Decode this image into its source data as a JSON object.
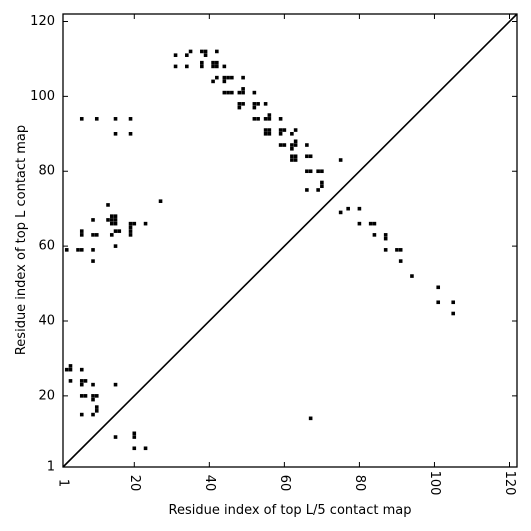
{
  "chart_data": {
    "type": "scatter",
    "xlabel": "Residue index of top L/5 contact map",
    "ylabel": "Residue index of top L contact map",
    "xlim": [
      1,
      122
    ],
    "ylim": [
      1,
      122
    ],
    "xticks": [
      1,
      20,
      40,
      60,
      80,
      100,
      120
    ],
    "yticks": [
      1,
      20,
      40,
      60,
      80,
      100,
      120
    ],
    "x_tick_labels_rotated": true,
    "diagonal_line": true,
    "grid": false,
    "marker": "square",
    "marker_color": "#000000",
    "series": [
      {
        "points": [
          [
            2,
            27
          ],
          [
            3,
            27
          ],
          [
            3,
            28
          ],
          [
            3,
            24
          ],
          [
            6,
            27
          ],
          [
            6,
            24
          ],
          [
            7,
            24
          ],
          [
            6,
            23
          ],
          [
            6,
            20
          ],
          [
            7,
            20
          ],
          [
            9,
            23
          ],
          [
            9,
            20
          ],
          [
            10,
            20
          ],
          [
            9,
            19
          ],
          [
            10,
            17
          ],
          [
            10,
            16
          ],
          [
            6,
            15
          ],
          [
            9,
            15
          ],
          [
            15,
            23
          ],
          [
            15,
            9
          ],
          [
            20,
            10
          ],
          [
            20,
            9
          ],
          [
            20,
            6
          ],
          [
            23,
            6
          ],
          [
            2,
            59
          ],
          [
            5,
            59
          ],
          [
            6,
            59
          ],
          [
            6,
            64
          ],
          [
            6,
            63
          ],
          [
            9,
            63
          ],
          [
            10,
            63
          ],
          [
            9,
            67
          ],
          [
            9,
            59
          ],
          [
            9,
            56
          ],
          [
            13,
            71
          ],
          [
            13,
            67
          ],
          [
            14,
            68
          ],
          [
            15,
            68
          ],
          [
            14,
            67
          ],
          [
            15,
            67
          ],
          [
            14,
            66
          ],
          [
            15,
            66
          ],
          [
            15,
            64
          ],
          [
            16,
            64
          ],
          [
            14,
            63
          ],
          [
            15,
            60
          ],
          [
            19,
            66
          ],
          [
            20,
            66
          ],
          [
            19,
            65
          ],
          [
            19,
            64
          ],
          [
            19,
            63
          ],
          [
            23,
            66
          ],
          [
            27,
            72
          ],
          [
            6,
            94
          ],
          [
            10,
            94
          ],
          [
            15,
            94
          ],
          [
            15,
            90
          ],
          [
            19,
            94
          ],
          [
            19,
            90
          ],
          [
            31,
            111
          ],
          [
            31,
            108
          ],
          [
            34,
            111
          ],
          [
            34,
            108
          ],
          [
            35,
            112
          ],
          [
            38,
            112
          ],
          [
            39,
            112
          ],
          [
            39,
            111
          ],
          [
            38,
            109
          ],
          [
            38,
            108
          ],
          [
            41,
            109
          ],
          [
            42,
            109
          ],
          [
            42,
            112
          ],
          [
            41,
            108
          ],
          [
            42,
            108
          ],
          [
            41,
            104
          ],
          [
            42,
            105
          ],
          [
            44,
            108
          ],
          [
            44,
            105
          ],
          [
            45,
            105
          ],
          [
            46,
            105
          ],
          [
            44,
            104
          ],
          [
            44,
            101
          ],
          [
            45,
            101
          ],
          [
            46,
            101
          ],
          [
            48,
            101
          ],
          [
            49,
            102
          ],
          [
            49,
            101
          ],
          [
            49,
            105
          ],
          [
            48,
            98
          ],
          [
            49,
            98
          ],
          [
            48,
            97
          ],
          [
            52,
            101
          ],
          [
            52,
            98
          ],
          [
            53,
            98
          ],
          [
            52,
            97
          ],
          [
            52,
            94
          ],
          [
            53,
            94
          ],
          [
            55,
            98
          ],
          [
            55,
            94
          ],
          [
            56,
            94
          ],
          [
            55,
            91
          ],
          [
            56,
            91
          ],
          [
            55,
            90
          ],
          [
            56,
            90
          ],
          [
            56,
            95
          ],
          [
            59,
            94
          ],
          [
            59,
            91
          ],
          [
            60,
            91
          ],
          [
            59,
            90
          ],
          [
            59,
            87
          ],
          [
            60,
            87
          ],
          [
            62,
            90
          ],
          [
            62,
            87
          ],
          [
            63,
            88
          ],
          [
            63,
            87
          ],
          [
            62,
            86
          ],
          [
            63,
            91
          ],
          [
            62,
            84
          ],
          [
            63,
            84
          ],
          [
            62,
            83
          ],
          [
            63,
            83
          ],
          [
            66,
            87
          ],
          [
            66,
            84
          ],
          [
            67,
            84
          ],
          [
            66,
            80
          ],
          [
            67,
            80
          ],
          [
            69,
            80
          ],
          [
            70,
            80
          ],
          [
            70,
            77
          ],
          [
            70,
            76
          ],
          [
            69,
            75
          ],
          [
            66,
            75
          ],
          [
            67,
            14
          ],
          [
            75,
            83
          ],
          [
            75,
            69
          ],
          [
            77,
            70
          ],
          [
            80,
            70
          ],
          [
            80,
            66
          ],
          [
            83,
            66
          ],
          [
            84,
            66
          ],
          [
            84,
            63
          ],
          [
            87,
            63
          ],
          [
            87,
            62
          ],
          [
            87,
            59
          ],
          [
            90,
            59
          ],
          [
            91,
            59
          ],
          [
            91,
            56
          ],
          [
            94,
            52
          ],
          [
            101,
            49
          ],
          [
            101,
            45
          ],
          [
            105,
            45
          ],
          [
            105,
            42
          ]
        ]
      }
    ]
  }
}
